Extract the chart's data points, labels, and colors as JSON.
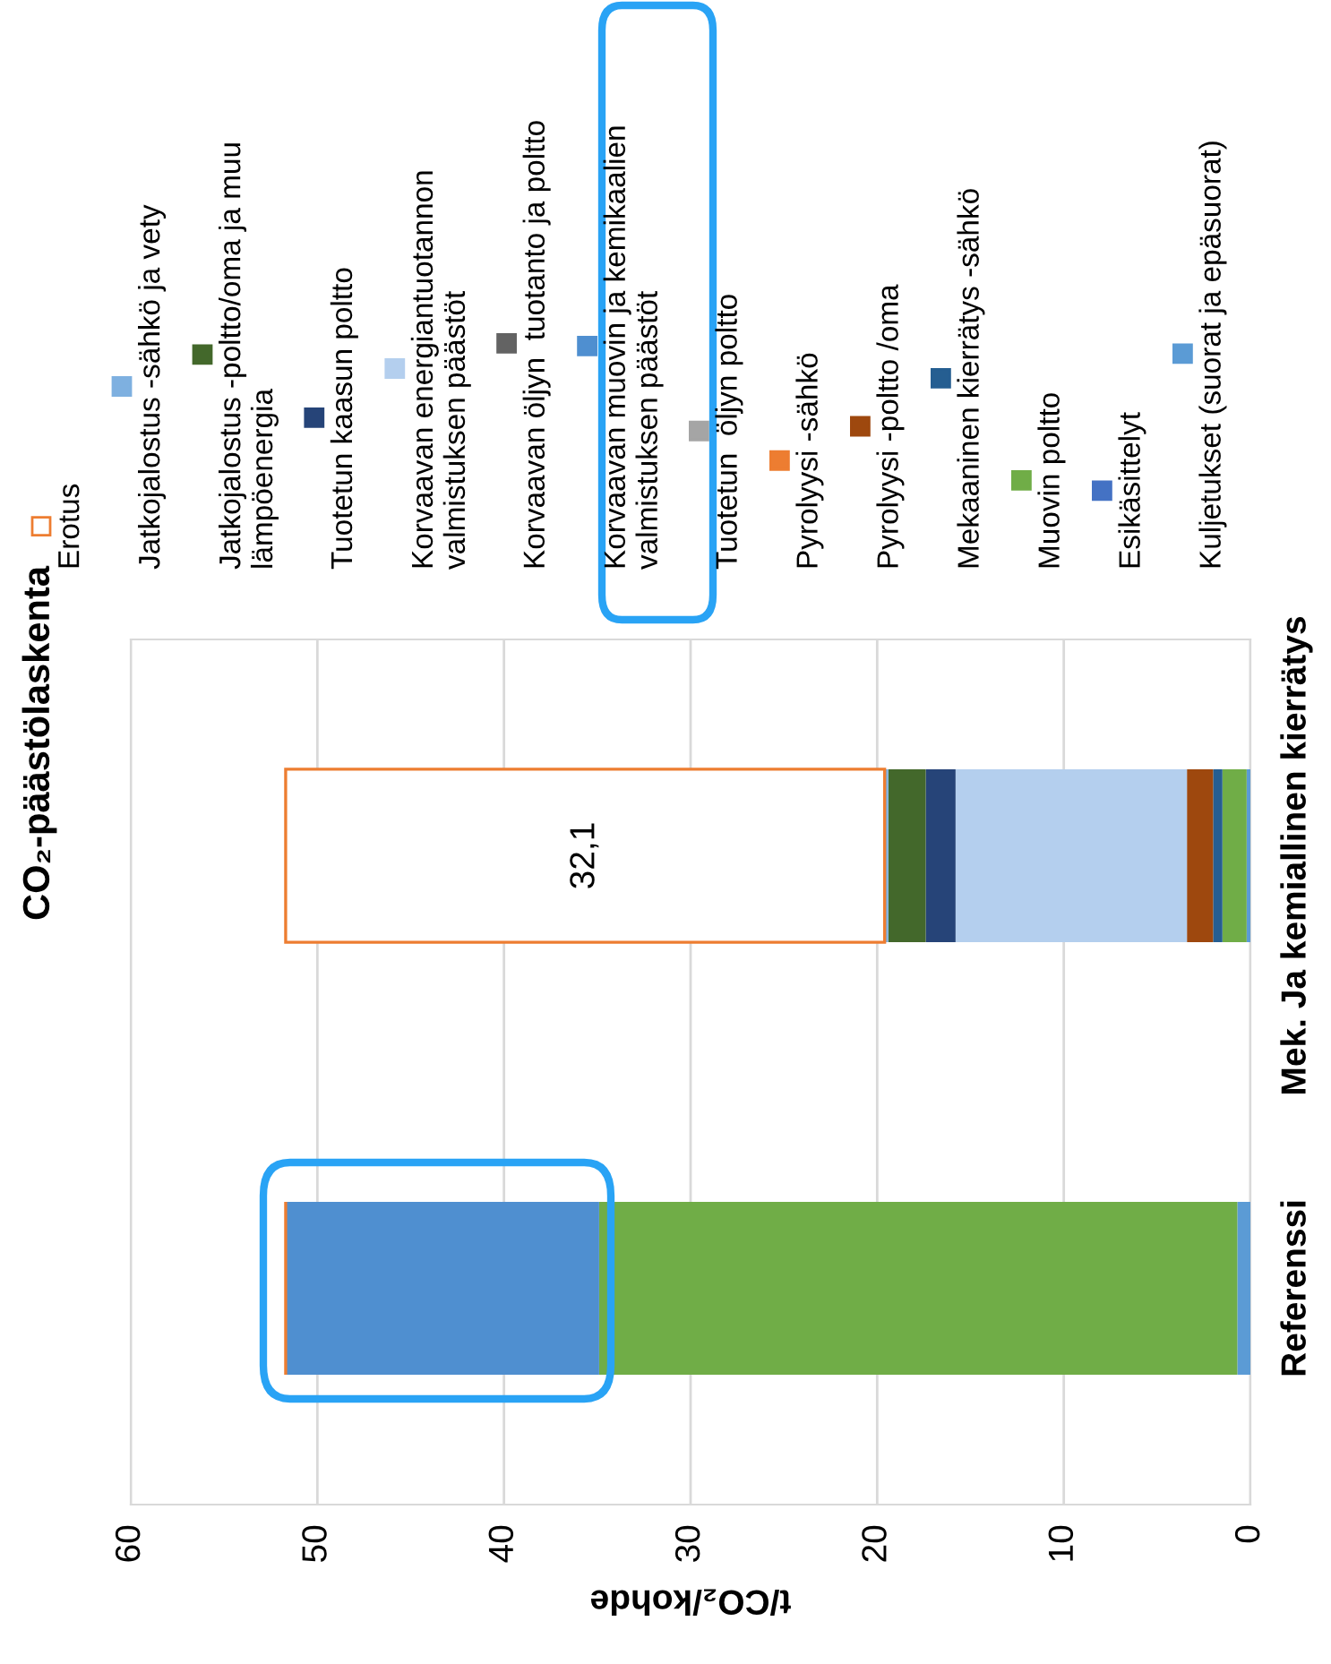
{
  "chart_data": {
    "type": "bar",
    "orientation": "horizontal",
    "stacked": true,
    "title": "CO₂-päästölaskenta",
    "xlabel": "t/CO₂/kohde",
    "categories": [
      "Mek. Ja kemiallinen kierrätys",
      "Referenssi"
    ],
    "xlim": [
      60,
      0
    ],
    "xticks": [
      0,
      10,
      20,
      30,
      40,
      50,
      60
    ],
    "grid": "x",
    "legend": "top",
    "series": [
      {
        "name": "Kuljetukset (suorat ja epäsuorat)",
        "color": "#5b9bd5",
        "values": [
          0.2,
          0.7
        ]
      },
      {
        "name": "Esikäsittelyt",
        "color": "#4472c4",
        "values": [
          0,
          0
        ]
      },
      {
        "name": "Muovin poltto",
        "color": "#70ad47",
        "values": [
          1.3,
          34.2
        ]
      },
      {
        "name": "Mekaaninen kierrätys -sähkö",
        "color": "#255e91",
        "values": [
          0.5,
          0
        ]
      },
      {
        "name": "Pyrolyysi -poltto /oma",
        "color": "#9e480e",
        "values": [
          1.4,
          0
        ]
      },
      {
        "name": "Pyrolyysi -sähkö",
        "color": "#ed7d31",
        "values": [
          0,
          0
        ]
      },
      {
        "name": "Tuotetun  öljyn poltto",
        "color": "#a5a5a5",
        "values": [
          0,
          0
        ]
      },
      {
        "name": "Korvaavan muovin ja kemikaalien\nvalmistuksen päästöt",
        "color": "#4f8fd0",
        "values": [
          0,
          16.8
        ]
      },
      {
        "name": "Korvaavan öljyn  tuotanto ja poltto",
        "color": "#636363",
        "values": [
          0,
          0
        ]
      },
      {
        "name": "Korvaavan energiantuotannon\nvalmistuksen päästöt",
        "color": "#b4cfee",
        "values": [
          12.4,
          0
        ]
      },
      {
        "name": "Tuotetun kaasun poltto",
        "color": "#264478",
        "values": [
          1.6,
          0
        ]
      },
      {
        "name": "Jatkojalostus -poltto/oma ja muu\nlämpöenergia",
        "color": "#43682b",
        "values": [
          2.0,
          0
        ]
      },
      {
        "name": "Jatkojalostus -sähkö ja vety",
        "color": "#7eb0e0",
        "values": [
          0.2,
          0
        ]
      },
      {
        "name": "Erotus",
        "color": "#ed7d31",
        "line_style": "solid",
        "values": [
          32.1,
          0
        ],
        "value_labels": [
          "32,1",
          null
        ]
      }
    ]
  }
}
